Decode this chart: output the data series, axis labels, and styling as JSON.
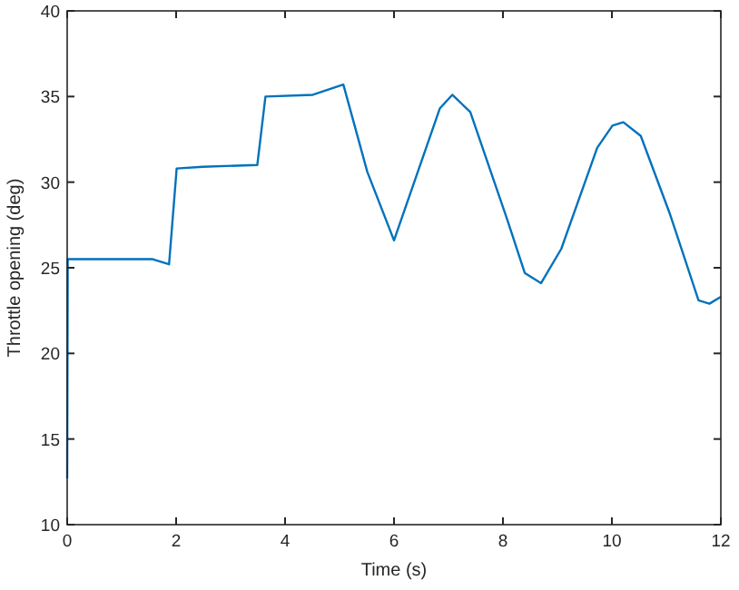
{
  "chart_data": {
    "type": "line",
    "xlabel": "Time (s)",
    "ylabel": "Throttle opening (deg)",
    "xlim": [
      0,
      12
    ],
    "ylim": [
      10,
      40
    ],
    "xticks": [
      0,
      2,
      4,
      6,
      8,
      10,
      12
    ],
    "yticks": [
      10,
      15,
      20,
      25,
      30,
      35,
      40
    ],
    "grid": false,
    "marker": "none",
    "line_style": "solid",
    "series": [
      {
        "color": "#0072bd",
        "x": [
          0,
          0.01,
          1.57,
          1.87,
          2.01,
          2.49,
          3.49,
          3.64,
          4.51,
          5.07,
          5.51,
          6.0,
          6.84,
          7.07,
          7.4,
          8.07,
          8.4,
          8.7,
          9.07,
          9.73,
          10.01,
          10.21,
          10.53,
          11.07,
          11.59,
          11.79,
          12
        ],
        "values": [
          12.7,
          25.5,
          25.5,
          25.2,
          30.8,
          30.9,
          31.0,
          35.0,
          35.1,
          35.7,
          30.6,
          26.6,
          34.3,
          35.1,
          34.1,
          27.9,
          24.7,
          24.1,
          26.1,
          32.0,
          33.3,
          33.5,
          32.7,
          28.1,
          23.1,
          22.9,
          23.3
        ]
      }
    ]
  }
}
